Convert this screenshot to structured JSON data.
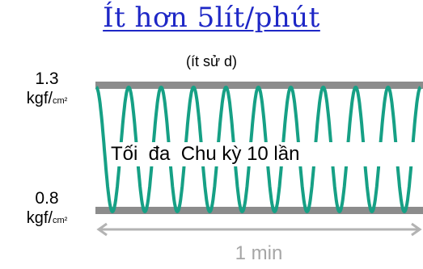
{
  "title": "Ít hơn 5lít/phút",
  "subtitle": "(ít sử d)",
  "y_axis": {
    "top": {
      "value": "1.3",
      "unit_main": "kgf/",
      "unit_small": "cm²"
    },
    "bottom": {
      "value": "0.8",
      "unit_main": "kgf/",
      "unit_small": "cm²"
    }
  },
  "label_cycles": "Tối  đa  Chu kỳ 10 lần",
  "label_time": "1 min",
  "wave": {
    "cycles": 10,
    "unit": "per min"
  },
  "colors": {
    "wave": "#16a085",
    "band": "#8c8c8c",
    "arrow": "#b3b3b3",
    "title": "#1e27c6"
  }
}
